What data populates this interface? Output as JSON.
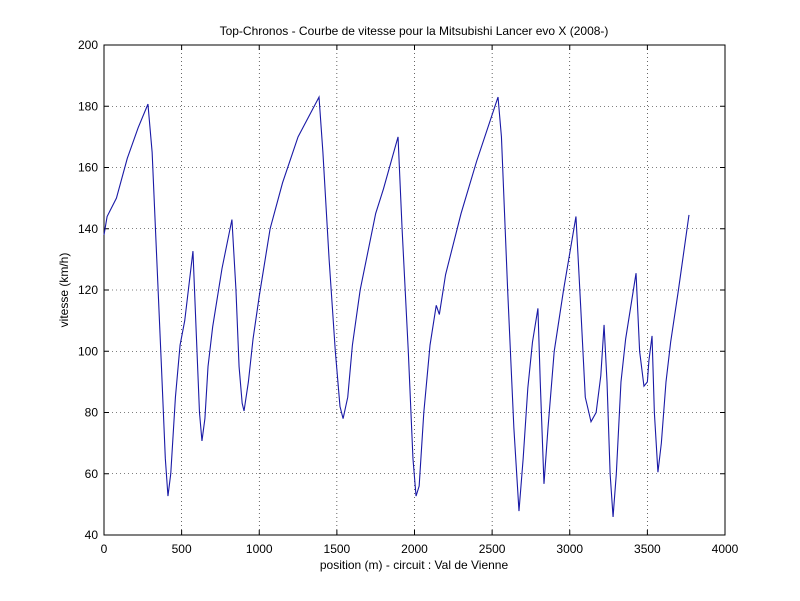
{
  "chart_data": {
    "type": "line",
    "title": "Top-Chronos - Courbe de vitesse pour la Mitsubishi Lancer evo X (2008-)",
    "x_label": "position (m) - circuit : Val de Vienne",
    "y_label": "vitesse (km/h)",
    "color": "#1a1aa6",
    "grid": true,
    "xlim": [
      0,
      4000
    ],
    "xticks": [
      0,
      500,
      1000,
      1500,
      2000,
      2500,
      3000,
      3500,
      4000
    ],
    "ylim": [
      40,
      200
    ],
    "yticks": [
      40,
      60,
      80,
      100,
      120,
      140,
      160,
      180,
      200
    ],
    "x": [
      0,
      20,
      40,
      80,
      150,
      220,
      283,
      310,
      340,
      370,
      395,
      412,
      430,
      460,
      490,
      520,
      573,
      595,
      615,
      631,
      650,
      670,
      700,
      760,
      824,
      850,
      870,
      890,
      902,
      930,
      960,
      1000,
      1070,
      1150,
      1250,
      1385,
      1410,
      1450,
      1490,
      1520,
      1540,
      1570,
      1600,
      1650,
      1750,
      1800,
      1894,
      1920,
      1960,
      1990,
      2010,
      2030,
      2060,
      2100,
      2140,
      2160,
      2200,
      2300,
      2400,
      2538,
      2560,
      2600,
      2640,
      2673,
      2700,
      2730,
      2760,
      2795,
      2810,
      2834,
      2860,
      2900,
      2960,
      3040,
      3070,
      3100,
      3137,
      3170,
      3200,
      3221,
      3240,
      3260,
      3279,
      3300,
      3330,
      3360,
      3427,
      3450,
      3478,
      3500,
      3510,
      3530,
      3545,
      3568,
      3590,
      3620,
      3650,
      3700,
      3768
    ],
    "values": [
      138,
      144,
      146,
      150,
      163,
      173,
      180.7,
      165,
      130,
      95,
      65,
      52.7,
      60,
      85,
      102,
      110,
      132.7,
      105,
      80,
      70.7,
      78,
      95,
      108,
      127,
      143,
      120,
      95,
      83,
      80.5,
      90,
      104,
      118,
      140,
      155,
      170,
      183,
      165,
      130,
      100,
      82,
      78,
      85,
      102,
      120,
      145,
      153,
      170,
      140,
      100,
      65,
      52.7,
      56,
      80,
      102,
      115,
      112,
      125,
      145,
      162,
      183,
      170,
      120,
      75,
      47.8,
      65,
      88,
      103,
      114,
      90,
      56.7,
      75,
      100,
      120,
      144,
      115,
      85,
      77,
      80,
      92,
      108.6,
      90,
      60,
      45.9,
      60,
      90,
      104,
      125.5,
      100,
      88.6,
      90,
      97,
      105,
      80,
      60.5,
      70,
      90,
      103,
      120,
      144.5
    ]
  }
}
